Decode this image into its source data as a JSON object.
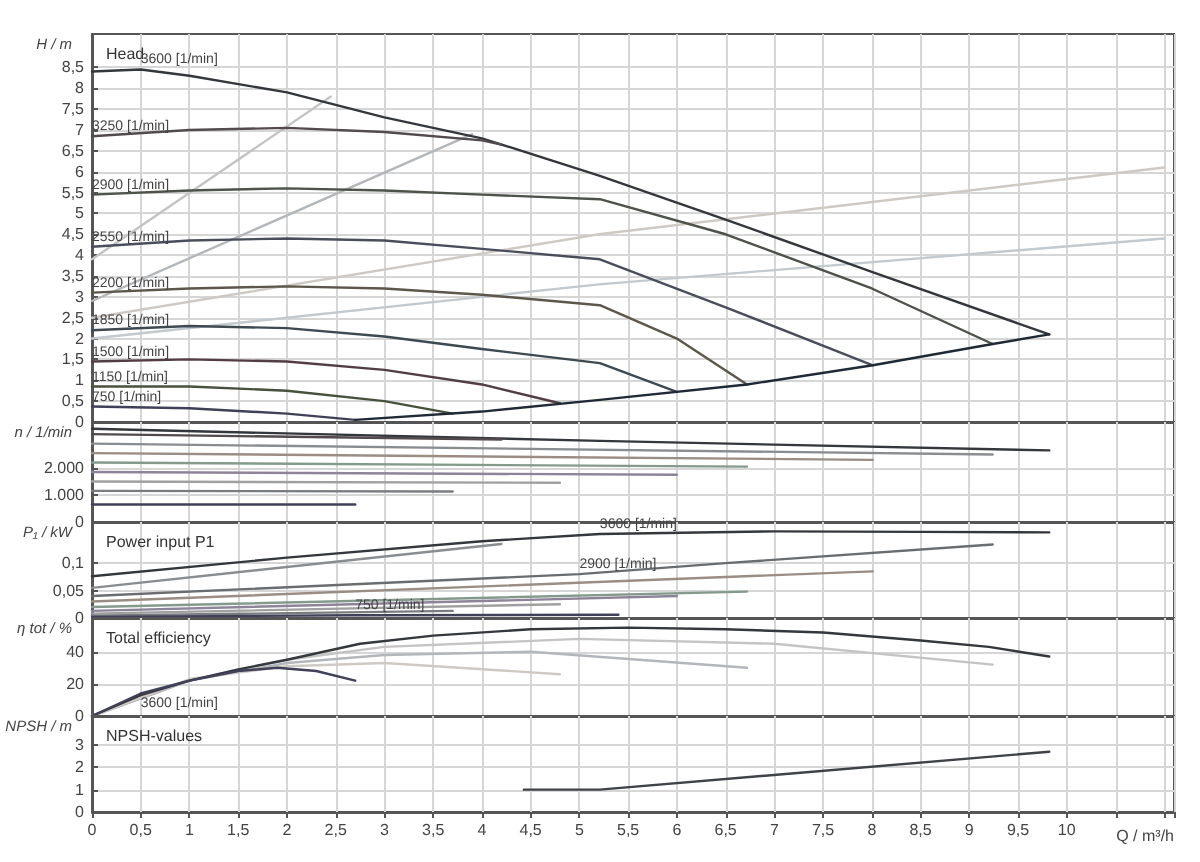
{
  "chart_data": [
    {
      "type": "line",
      "title": "Head",
      "ylabel": "H / m",
      "xlim": [
        0,
        11.1
      ],
      "ylim": [
        0,
        9.3
      ],
      "tick_labels": "y",
      "grid": true,
      "marker": "none",
      "line_style": "solid",
      "xticks": [
        {
          "value": 0,
          "label": null
        },
        {
          "value": 0.5,
          "label": null
        },
        {
          "value": 1,
          "label": null
        },
        {
          "value": 1.5,
          "label": null
        },
        {
          "value": 2,
          "label": null
        },
        {
          "value": 2.5,
          "label": null
        },
        {
          "value": 3,
          "label": null
        },
        {
          "value": 3.5,
          "label": null
        },
        {
          "value": 4,
          "label": null
        },
        {
          "value": 4.5,
          "label": null
        },
        {
          "value": 5,
          "label": null
        },
        {
          "value": 5.5,
          "label": null
        },
        {
          "value": 6,
          "label": null
        },
        {
          "value": 6.5,
          "label": null
        },
        {
          "value": 7,
          "label": null
        },
        {
          "value": 7.5,
          "label": null
        },
        {
          "value": 8,
          "label": null
        },
        {
          "value": 8.5,
          "label": null
        },
        {
          "value": 9,
          "label": null
        },
        {
          "value": 9.5,
          "label": null
        },
        {
          "value": 10,
          "label": null
        }
      ],
      "yticks": [
        0,
        {
          "value": 0.5,
          "label": "0,5"
        },
        1,
        {
          "value": 1.5,
          "label": "1,5"
        },
        2,
        {
          "value": 2.5,
          "label": "2,5"
        },
        3,
        {
          "value": 3.5,
          "label": "3,5"
        },
        4,
        {
          "value": 4.5,
          "label": "4,5"
        },
        5,
        {
          "value": 5.5,
          "label": "5,5"
        },
        6,
        {
          "value": 6.5,
          "label": "6,5"
        },
        7,
        {
          "value": 7.5,
          "label": "7,5"
        },
        8,
        {
          "value": 8.5,
          "label": "8,5"
        }
      ],
      "series": [
        {
          "color": "#c4c4c4",
          "x": [
            0,
            2.45
          ],
          "values": [
            3.9,
            7.8
          ]
        },
        {
          "color": "#b3b6ba",
          "x": [
            0,
            3.9
          ],
          "values": [
            2.9,
            6.9
          ]
        },
        {
          "color": "#cfc9c4",
          "x": [
            0,
            5.2,
            11
          ],
          "values": [
            2.5,
            4.5,
            6.1
          ]
        },
        {
          "color": "#c2c9cf",
          "x": [
            0,
            5.2,
            11
          ],
          "values": [
            2.0,
            3.3,
            4.4
          ]
        },
        {
          "name": "3600 [1/min]",
          "color": "#34373c",
          "x": [
            0,
            0.5,
            1,
            2,
            3,
            4,
            5.21,
            6.5,
            8,
            9.82
          ],
          "values": [
            8.4,
            8.45,
            8.3,
            7.9,
            7.3,
            6.8,
            5.9,
            4.85,
            3.6,
            2.1
          ]
        },
        {
          "name": "3250 [1/min]",
          "color": "#524a4d",
          "x": [
            0,
            1,
            2,
            3,
            4,
            4.2
          ],
          "values": [
            6.85,
            7.0,
            7.05,
            6.95,
            6.75,
            6.65
          ]
        },
        {
          "name": "2900 [1/min]",
          "color": "#4d524a",
          "x": [
            0,
            1,
            2,
            3,
            4,
            5.21,
            6.5,
            8,
            9.24
          ],
          "values": [
            5.45,
            5.55,
            5.6,
            5.55,
            5.45,
            5.34,
            4.5,
            3.2,
            1.87
          ]
        },
        {
          "name": "2550 [1/min]",
          "color": "#4a4d5c",
          "x": [
            0,
            1,
            2,
            3,
            4,
            5.21,
            6.5,
            8.01
          ],
          "values": [
            4.2,
            4.35,
            4.4,
            4.35,
            4.15,
            3.9,
            2.75,
            1.36
          ]
        },
        {
          "name": "2200 [1/min]",
          "color": "#5c574a",
          "x": [
            0,
            1,
            2,
            3,
            4,
            5.21,
            6,
            6.72
          ],
          "values": [
            3.1,
            3.2,
            3.25,
            3.2,
            3.05,
            2.8,
            2.0,
            0.9
          ]
        },
        {
          "name": "1850 [1/min]",
          "color": "#3d4a52",
          "x": [
            0,
            1,
            2,
            3,
            4,
            5.21,
            6
          ],
          "values": [
            2.2,
            2.3,
            2.25,
            2.05,
            1.75,
            1.41,
            0.72
          ]
        },
        {
          "name": "1500 [1/min]",
          "color": "#523d47",
          "x": [
            0,
            1,
            2,
            3,
            4,
            4.8
          ],
          "values": [
            1.45,
            1.5,
            1.45,
            1.25,
            0.9,
            0.45
          ]
        },
        {
          "name": "1150 [1/min]",
          "color": "#47523d",
          "x": [
            0,
            1,
            2,
            3,
            3.7
          ],
          "values": [
            0.85,
            0.85,
            0.75,
            0.5,
            0.2
          ]
        },
        {
          "name": "750 [1/min]",
          "color": "#404058",
          "x": [
            0,
            1,
            2,
            2.7
          ],
          "values": [
            0.37,
            0.33,
            0.2,
            0.05
          ]
        },
        {
          "color": "#1f2a36",
          "x": [
            2.7,
            4,
            5.21,
            6.72,
            8.01,
            9.24,
            9.82
          ],
          "values": [
            0.05,
            0.25,
            0.53,
            0.9,
            1.36,
            1.87,
            2.1
          ]
        }
      ]
    },
    {
      "type": "line",
      "ylabel": "n / 1/min",
      "xlim": [
        0,
        11.1
      ],
      "ylim": [
        0,
        3700
      ],
      "tick_labels": "y",
      "grid": true,
      "marker": "none",
      "line_style": "solid",
      "xticks": [
        {
          "value": 0,
          "label": null
        },
        {
          "value": 0.5,
          "label": null
        },
        {
          "value": 1,
          "label": null
        },
        {
          "value": 1.5,
          "label": null
        },
        {
          "value": 2,
          "label": null
        },
        {
          "value": 2.5,
          "label": null
        },
        {
          "value": 3,
          "label": null
        },
        {
          "value": 3.5,
          "label": null
        },
        {
          "value": 4,
          "label": null
        },
        {
          "value": 4.5,
          "label": null
        },
        {
          "value": 5,
          "label": null
        },
        {
          "value": 5.5,
          "label": null
        },
        {
          "value": 6,
          "label": null
        },
        {
          "value": 6.5,
          "label": null
        },
        {
          "value": 7,
          "label": null
        },
        {
          "value": 7.5,
          "label": null
        },
        {
          "value": 8,
          "label": null
        },
        {
          "value": 8.5,
          "label": null
        },
        {
          "value": 9,
          "label": null
        },
        {
          "value": 9.5,
          "label": null
        },
        {
          "value": 10,
          "label": null
        }
      ],
      "yticks": [
        0,
        {
          "value": 1000,
          "label": "1.000"
        },
        {
          "value": 2000,
          "label": "2.000"
        }
      ],
      "series": [
        {
          "color": "#34373c",
          "x": [
            0,
            5.21,
            9.82
          ],
          "values": [
            3450,
            3000,
            2650
          ]
        },
        {
          "color": "#524a4d",
          "x": [
            0,
            4.2
          ],
          "values": [
            3250,
            3050
          ]
        },
        {
          "color": "#8a8d90",
          "x": [
            0,
            9.24
          ],
          "values": [
            2900,
            2500
          ]
        },
        {
          "color": "#9a8d84",
          "x": [
            0,
            8.01
          ],
          "values": [
            2550,
            2300
          ]
        },
        {
          "color": "#849a8d",
          "x": [
            0,
            6.72
          ],
          "values": [
            2200,
            2050
          ]
        },
        {
          "color": "#8d849a",
          "x": [
            0,
            6
          ],
          "values": [
            1850,
            1750
          ]
        },
        {
          "color": "#a0a0a0",
          "x": [
            0,
            4.8
          ],
          "values": [
            1500,
            1450
          ]
        },
        {
          "color": "#7a7d80",
          "x": [
            0,
            3.7
          ],
          "values": [
            1150,
            1130
          ]
        },
        {
          "color": "#404058",
          "x": [
            0,
            2.7
          ],
          "values": [
            650,
            650
          ]
        }
      ]
    },
    {
      "type": "line",
      "title": "Power input P1",
      "ylabel": "P₁ / kW",
      "xlim": [
        0,
        11.1
      ],
      "ylim": [
        0,
        0.175
      ],
      "tick_labels": "y",
      "grid": true,
      "marker": "none",
      "line_style": "solid",
      "xticks": [
        {
          "value": 0,
          "label": null
        },
        {
          "value": 0.5,
          "label": null
        },
        {
          "value": 1,
          "label": null
        },
        {
          "value": 1.5,
          "label": null
        },
        {
          "value": 2,
          "label": null
        },
        {
          "value": 2.5,
          "label": null
        },
        {
          "value": 3,
          "label": null
        },
        {
          "value": 3.5,
          "label": null
        },
        {
          "value": 4,
          "label": null
        },
        {
          "value": 4.5,
          "label": null
        },
        {
          "value": 5,
          "label": null
        },
        {
          "value": 5.5,
          "label": null
        },
        {
          "value": 6,
          "label": null
        },
        {
          "value": 6.5,
          "label": null
        },
        {
          "value": 7,
          "label": null
        },
        {
          "value": 7.5,
          "label": null
        },
        {
          "value": 8,
          "label": null
        },
        {
          "value": 8.5,
          "label": null
        },
        {
          "value": 9,
          "label": null
        },
        {
          "value": 9.5,
          "label": null
        },
        {
          "value": 10,
          "label": null
        }
      ],
      "yticks": [
        0,
        {
          "value": 0.05,
          "label": "0,05"
        },
        {
          "value": 0.1,
          "label": "0,1"
        }
      ],
      "series": [
        {
          "name": "3600 [1/min]",
          "color": "#34373c",
          "x": [
            0,
            2,
            4,
            5.21,
            7,
            8.5,
            9.82
          ],
          "values": [
            0.076,
            0.11,
            0.14,
            0.153,
            0.158,
            0.157,
            0.156
          ]
        },
        {
          "color": "#8a8d90",
          "x": [
            0,
            4.2
          ],
          "values": [
            0.055,
            0.135
          ]
        },
        {
          "name": "2900 [1/min]",
          "color": "#6a6d70",
          "x": [
            0,
            5,
            6.5,
            9.24
          ],
          "values": [
            0.04,
            0.08,
            0.1,
            0.134
          ]
        },
        {
          "color": "#9a8d84",
          "x": [
            0,
            8.01
          ],
          "values": [
            0.03,
            0.085
          ]
        },
        {
          "color": "#849a8d",
          "x": [
            0,
            6.72
          ],
          "values": [
            0.02,
            0.048
          ]
        },
        {
          "color": "#8d849a",
          "x": [
            0,
            6
          ],
          "values": [
            0.013,
            0.04
          ]
        },
        {
          "color": "#a0a0a0",
          "x": [
            0,
            4.8
          ],
          "values": [
            0.008,
            0.025
          ]
        },
        {
          "color": "#7a7d80",
          "x": [
            0,
            3.7
          ],
          "values": [
            0.004,
            0.013
          ]
        },
        {
          "name": "750 [1/min]",
          "color": "#404058",
          "x": [
            0,
            2.7,
            5.4
          ],
          "values": [
            0.002,
            0.005,
            0.006
          ]
        }
      ]
    },
    {
      "type": "line",
      "title": "Total efficiency",
      "ylabel": "η tot / %",
      "xlim": [
        0,
        11.1
      ],
      "ylim": [
        0,
        61
      ],
      "tick_labels": "y",
      "grid": true,
      "marker": "none",
      "line_style": "solid",
      "xticks": [
        {
          "value": 0,
          "label": null
        },
        {
          "value": 0.5,
          "label": null
        },
        {
          "value": 1,
          "label": null
        },
        {
          "value": 1.5,
          "label": null
        },
        {
          "value": 2,
          "label": null
        },
        {
          "value": 2.5,
          "label": null
        },
        {
          "value": 3,
          "label": null
        },
        {
          "value": 3.5,
          "label": null
        },
        {
          "value": 4,
          "label": null
        },
        {
          "value": 4.5,
          "label": null
        },
        {
          "value": 5,
          "label": null
        },
        {
          "value": 5.5,
          "label": null
        },
        {
          "value": 6,
          "label": null
        },
        {
          "value": 6.5,
          "label": null
        },
        {
          "value": 7,
          "label": null
        },
        {
          "value": 7.5,
          "label": null
        },
        {
          "value": 8,
          "label": null
        },
        {
          "value": 8.5,
          "label": null
        },
        {
          "value": 9,
          "label": null
        },
        {
          "value": 9.5,
          "label": null
        },
        {
          "value": 10,
          "label": null
        }
      ],
      "yticks": [
        0,
        20,
        40
      ],
      "series": [
        {
          "color": "#c4c4c4",
          "x": [
            0,
            1,
            2,
            3,
            5,
            7,
            9.24
          ],
          "values": [
            0,
            22,
            35,
            43,
            48,
            45,
            32
          ]
        },
        {
          "color": "#b3b6ba",
          "x": [
            0,
            1,
            2,
            3,
            4.5,
            6.72
          ],
          "values": [
            0,
            22,
            33,
            38,
            40,
            30
          ]
        },
        {
          "color": "#cfc9c4",
          "x": [
            0,
            1,
            2,
            3,
            4.8
          ],
          "values": [
            0,
            23,
            31,
            33,
            26
          ]
        },
        {
          "name": "3600 [1/min]",
          "color": "#34373c",
          "x": [
            0,
            0.5,
            1,
            1.5,
            2,
            2.75,
            3.5,
            4.5,
            5.5,
            6.5,
            7.5,
            8.5,
            9.2,
            9.82
          ],
          "values": [
            0,
            13,
            22,
            29,
            35,
            45,
            50,
            54,
            55,
            54,
            52,
            47,
            43,
            37
          ]
        },
        {
          "color": "#404058",
          "x": [
            0,
            0.5,
            1,
            1.5,
            1.9,
            2.3,
            2.7
          ],
          "values": [
            0,
            14,
            22,
            28,
            30,
            28,
            22
          ]
        }
      ]
    },
    {
      "type": "line",
      "title": "NPSH-values",
      "ylabel": "NPSH / m",
      "xlabel": "Q / m³/h",
      "xlim": [
        0,
        11.1
      ],
      "ylim": [
        0,
        4.3
      ],
      "grid": true,
      "marker": "none",
      "line_style": "solid",
      "xticks": [
        0,
        {
          "value": 0.5,
          "label": "0,5"
        },
        1,
        {
          "value": 1.5,
          "label": "1,5"
        },
        2,
        {
          "value": 2.5,
          "label": "2,5"
        },
        3,
        {
          "value": 3.5,
          "label": "3,5"
        },
        4,
        {
          "value": 4.5,
          "label": "4,5"
        },
        5,
        {
          "value": 5.5,
          "label": "5,5"
        },
        6,
        {
          "value": 6.5,
          "label": "6,5"
        },
        7,
        {
          "value": 7.5,
          "label": "7,5"
        },
        8,
        {
          "value": 8.5,
          "label": "8,5"
        },
        9,
        {
          "value": 9.5,
          "label": "9,5"
        },
        10
      ],
      "yticks": [
        0,
        1,
        2,
        3
      ],
      "series": [
        {
          "color": "#3f4247",
          "x": [
            4.43,
            5.21,
            9.82
          ],
          "values": [
            1.0,
            1.0,
            2.7
          ]
        }
      ]
    }
  ]
}
